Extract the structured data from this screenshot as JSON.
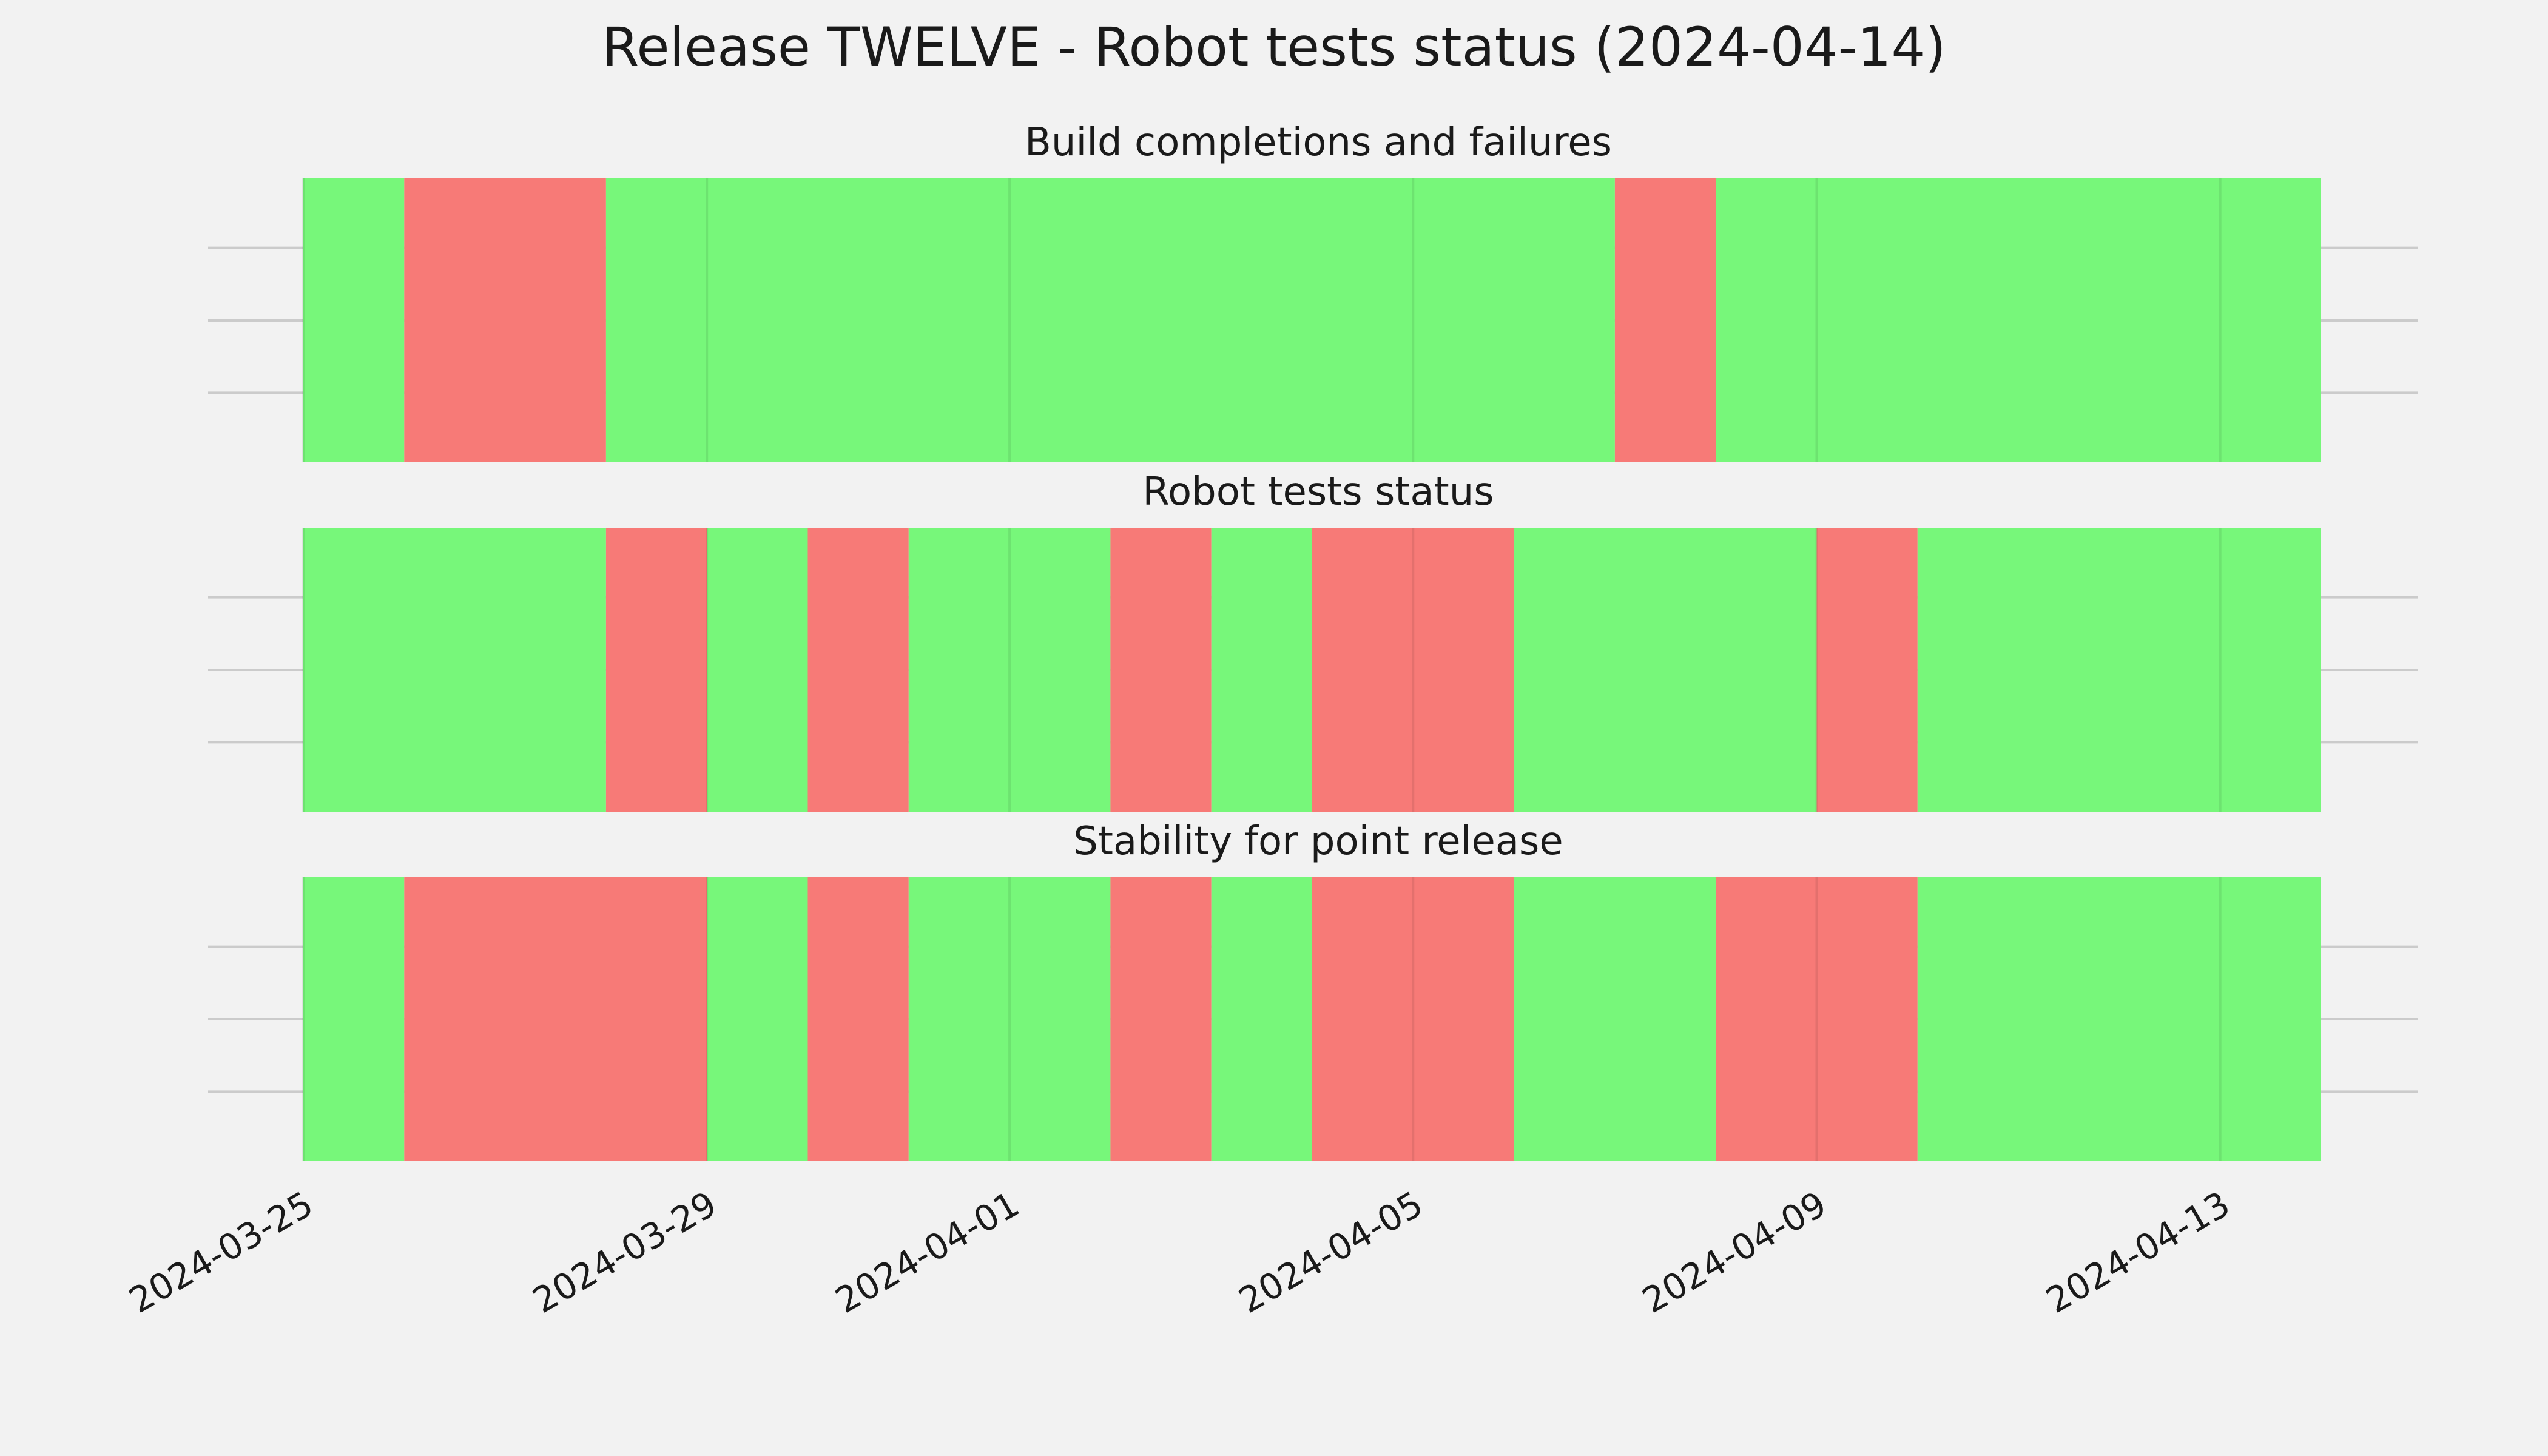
{
  "chart_data": {
    "type": "timeline",
    "title": "Release TWELVE - Robot tests status (2024-04-14)",
    "x_axis": {
      "type": "date",
      "range": [
        "2024-03-25",
        "2024-04-14"
      ],
      "ticks": [
        "2024-03-25",
        "2024-03-29",
        "2024-04-01",
        "2024-04-05",
        "2024-04-09",
        "2024-04-13"
      ]
    },
    "grid": true,
    "colors": {
      "pass": "#77f77a",
      "fail": "#f77a77",
      "background": "#f2f2f2",
      "grid": "#cbcbcb"
    },
    "panels": [
      {
        "title": "Build completions and failures",
        "segments": [
          {
            "start": "2024-03-25",
            "end": "2024-03-26",
            "status": "pass"
          },
          {
            "start": "2024-03-26",
            "end": "2024-03-28",
            "status": "fail"
          },
          {
            "start": "2024-03-28",
            "end": "2024-04-07",
            "status": "pass"
          },
          {
            "start": "2024-04-07",
            "end": "2024-04-08",
            "status": "fail"
          },
          {
            "start": "2024-04-08",
            "end": "2024-04-14",
            "status": "pass"
          }
        ]
      },
      {
        "title": "Robot tests status",
        "segments": [
          {
            "start": "2024-03-25",
            "end": "2024-03-28",
            "status": "pass"
          },
          {
            "start": "2024-03-28",
            "end": "2024-03-29",
            "status": "fail"
          },
          {
            "start": "2024-03-29",
            "end": "2024-03-30",
            "status": "pass"
          },
          {
            "start": "2024-03-30",
            "end": "2024-03-31",
            "status": "fail"
          },
          {
            "start": "2024-03-31",
            "end": "2024-04-02",
            "status": "pass"
          },
          {
            "start": "2024-04-02",
            "end": "2024-04-03",
            "status": "fail"
          },
          {
            "start": "2024-04-03",
            "end": "2024-04-04",
            "status": "pass"
          },
          {
            "start": "2024-04-04",
            "end": "2024-04-06",
            "status": "fail"
          },
          {
            "start": "2024-04-06",
            "end": "2024-04-09",
            "status": "pass"
          },
          {
            "start": "2024-04-09",
            "end": "2024-04-10",
            "status": "fail"
          },
          {
            "start": "2024-04-10",
            "end": "2024-04-14",
            "status": "pass"
          }
        ]
      },
      {
        "title": "Stability for point release",
        "segments": [
          {
            "start": "2024-03-25",
            "end": "2024-03-26",
            "status": "pass"
          },
          {
            "start": "2024-03-26",
            "end": "2024-03-29",
            "status": "fail"
          },
          {
            "start": "2024-03-29",
            "end": "2024-03-30",
            "status": "pass"
          },
          {
            "start": "2024-03-30",
            "end": "2024-03-31",
            "status": "fail"
          },
          {
            "start": "2024-03-31",
            "end": "2024-04-02",
            "status": "pass"
          },
          {
            "start": "2024-04-02",
            "end": "2024-04-03",
            "status": "fail"
          },
          {
            "start": "2024-04-03",
            "end": "2024-04-04",
            "status": "pass"
          },
          {
            "start": "2024-04-04",
            "end": "2024-04-06",
            "status": "fail"
          },
          {
            "start": "2024-04-06",
            "end": "2024-04-08",
            "status": "pass"
          },
          {
            "start": "2024-04-08",
            "end": "2024-04-10",
            "status": "fail"
          },
          {
            "start": "2024-04-10",
            "end": "2024-04-14",
            "status": "pass"
          }
        ]
      }
    ]
  }
}
